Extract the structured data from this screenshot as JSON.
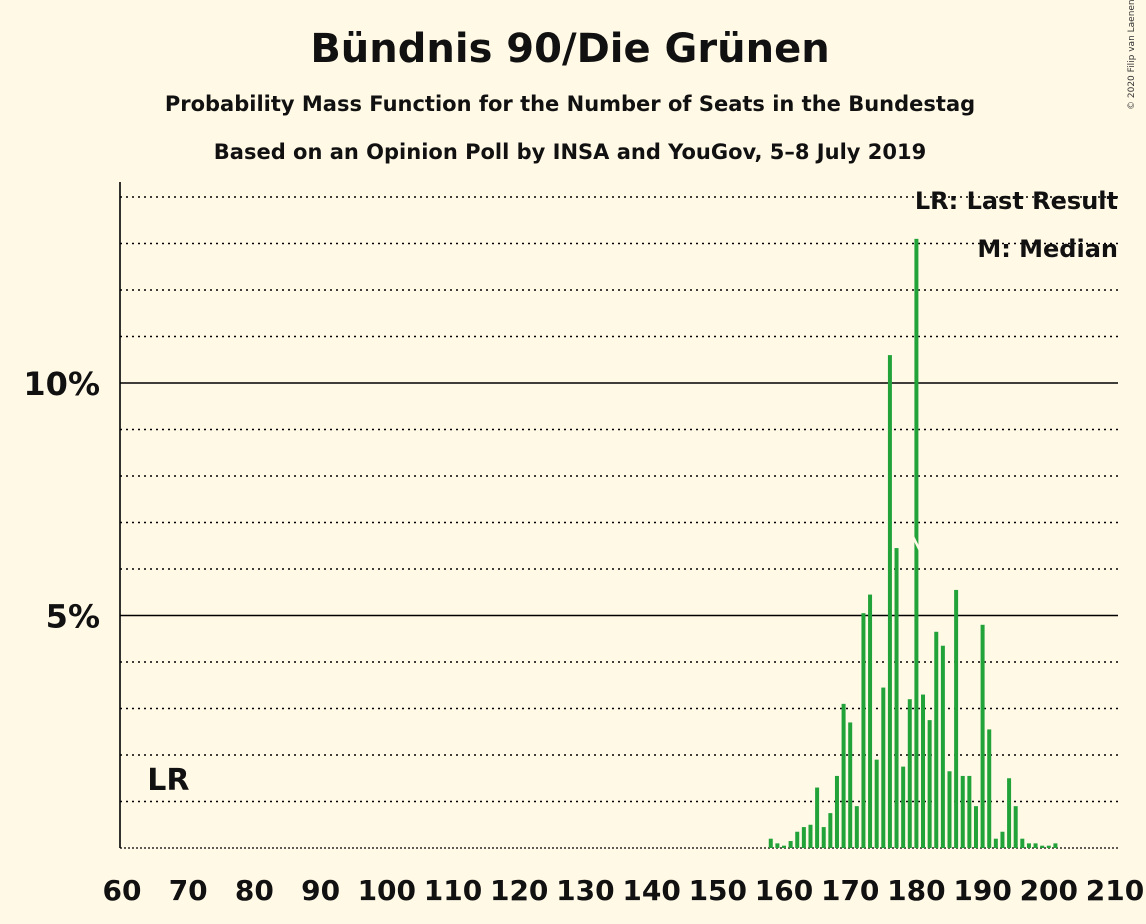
{
  "title": "Bündnis 90/Die Grünen",
  "subtitle_1": "Probability Mass Function for the Number of Seats in the Bundestag",
  "subtitle_2": "Based on an Opinion Poll by INSA and YouGov, 5–8 July 2019",
  "copyright": "© 2020 Filip van Laenen",
  "colors": {
    "background": "#fff9e6",
    "bar": "#22a33a",
    "axis": "#000000",
    "text": "#111111"
  },
  "chart_data": {
    "type": "bar",
    "xlim": [
      60,
      210
    ],
    "ylim": [
      0,
      14.3
    ],
    "y_unit": "%",
    "x_ticks": [
      60,
      70,
      80,
      90,
      100,
      110,
      120,
      130,
      140,
      150,
      160,
      170,
      180,
      190,
      200,
      210
    ],
    "y_ticks": [
      {
        "value": 5,
        "label": "5%"
      },
      {
        "value": 10,
        "label": "10%"
      }
    ],
    "grid": "dotted every 1%, solid at 5% and 10%",
    "legend": [
      "LR: Last Result",
      "M: Median"
    ],
    "legend_position": "top-right",
    "last_result": {
      "seat": 67,
      "label": "LR"
    },
    "median": {
      "seat": 180
    },
    "x": [
      158,
      159,
      160,
      161,
      162,
      163,
      164,
      165,
      166,
      167,
      168,
      169,
      170,
      171,
      172,
      173,
      174,
      175,
      176,
      177,
      178,
      179,
      180,
      181,
      182,
      183,
      184,
      185,
      186,
      187,
      188,
      189,
      190,
      191,
      192,
      193,
      194,
      195,
      196,
      197,
      198,
      199,
      200,
      201
    ],
    "values": [
      0.2,
      0.1,
      0.05,
      0.15,
      0.35,
      0.45,
      0.5,
      1.3,
      0.45,
      0.75,
      1.55,
      3.1,
      2.7,
      0.9,
      5.05,
      5.45,
      1.9,
      3.45,
      10.6,
      6.45,
      1.75,
      3.2,
      13.1,
      3.3,
      2.75,
      4.65,
      4.35,
      1.65,
      5.55,
      1.55,
      1.55,
      0.9,
      4.8,
      2.55,
      0.2,
      0.35,
      1.5,
      0.9,
      0.2,
      0.1,
      0.1,
      0.05,
      0.05,
      0.1
    ]
  }
}
